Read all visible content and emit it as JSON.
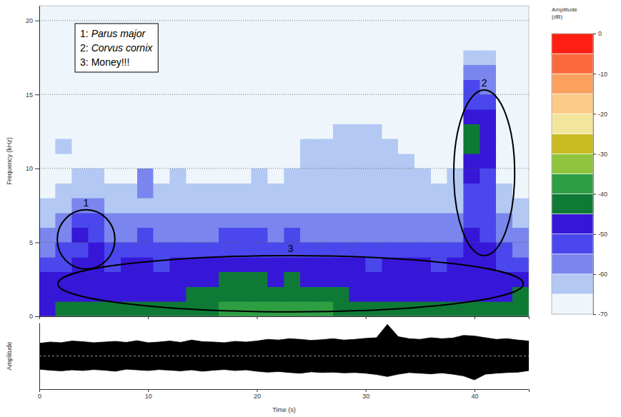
{
  "chart_data": [
    {
      "type": "heatmap",
      "ylabel": "Frequency (kHz)",
      "xlim": [
        0,
        45
      ],
      "xticks": [
        0,
        10,
        20,
        30,
        40
      ],
      "ylim": [
        0,
        21
      ],
      "yticks": [
        0,
        5,
        10,
        15,
        20
      ],
      "grid": true,
      "line_style": "dotted",
      "tick_labels": "y",
      "x_bins": [
        0,
        1.5,
        3,
        4.5,
        6,
        7.5,
        9,
        10.5,
        12,
        13.5,
        15,
        16.5,
        18,
        19.5,
        21,
        22.5,
        24,
        25.5,
        27,
        28.5,
        30,
        31.5,
        33,
        34.5,
        36,
        37.5,
        39,
        40.5,
        42,
        43.5,
        45
      ],
      "y_bins": [
        0,
        1,
        2,
        3,
        4,
        5,
        6,
        7,
        8,
        9,
        10,
        11,
        12,
        13,
        14,
        15,
        16,
        17,
        18,
        19,
        20,
        21
      ],
      "z": [
        [
          -46,
          -45,
          -44,
          -44,
          -45,
          -44,
          -44,
          -45,
          -43,
          -42,
          -41,
          -40,
          -39,
          -39,
          -40,
          -39,
          -39,
          -40,
          -42,
          -43,
          -44,
          -45,
          -44,
          -44,
          -44,
          -45,
          -42,
          -43,
          -44,
          -41
        ],
        [
          -49,
          -48,
          -47,
          -47,
          -48,
          -47,
          -47,
          -48,
          -46,
          -45,
          -44,
          -43,
          -42,
          -42,
          -43,
          -42,
          -43,
          -44,
          -45,
          -46,
          -47,
          -47,
          -47,
          -46,
          -47,
          -47,
          -46,
          -46,
          -47,
          -45
        ],
        [
          -50,
          -49,
          -48,
          -47,
          -48,
          -48,
          -47,
          -48,
          -47,
          -46,
          -46,
          -45,
          -45,
          -45,
          -46,
          -45,
          -46,
          -46,
          -47,
          -47,
          -48,
          -47,
          -47,
          -47,
          -48,
          -47,
          -46,
          -47,
          -48,
          -47
        ],
        [
          -53,
          -52,
          -50,
          -49,
          -51,
          -50,
          -50,
          -51,
          -50,
          -49,
          -49,
          -49,
          -48,
          -48,
          -49,
          -48,
          -49,
          -49,
          -50,
          -50,
          -51,
          -50,
          -50,
          -50,
          -51,
          -50,
          -48,
          -49,
          -51,
          -52
        ],
        [
          -56,
          -55,
          -51,
          -50,
          -54,
          -53,
          -52,
          -53,
          -52,
          -52,
          -52,
          -51,
          -51,
          -51,
          -52,
          -51,
          -52,
          -52,
          -53,
          -53,
          -53,
          -52,
          -52,
          -52,
          -53,
          -52,
          -49,
          -50,
          -54,
          -56
        ],
        [
          -59,
          -58,
          -50,
          -51,
          -57,
          -56,
          -55,
          -56,
          -56,
          -56,
          -56,
          -55,
          -55,
          -55,
          -56,
          -55,
          -56,
          -56,
          -56,
          -57,
          -56,
          -56,
          -56,
          -56,
          -57,
          -56,
          -50,
          -51,
          -57,
          -60
        ],
        [
          -62,
          -60,
          -52,
          -53,
          -60,
          -59,
          -58,
          -59,
          -59,
          -60,
          -59,
          -59,
          -58,
          -58,
          -59,
          -58,
          -59,
          -59,
          -59,
          -60,
          -59,
          -59,
          -59,
          -60,
          -60,
          -59,
          -51,
          -52,
          -60,
          -63
        ],
        [
          -64,
          -63,
          -56,
          -57,
          -63,
          -62,
          -61,
          -62,
          -62,
          -62,
          -62,
          -62,
          -61,
          -61,
          -62,
          -61,
          -62,
          -62,
          -62,
          -63,
          -62,
          -62,
          -62,
          -63,
          -63,
          -62,
          -52,
          -53,
          -63,
          -65
        ],
        [
          -66,
          -65,
          -62,
          -63,
          -65,
          -64,
          -60,
          -64,
          -64,
          -64,
          -64,
          -64,
          -64,
          -63,
          -64,
          -63,
          -64,
          -64,
          -64,
          -64,
          -64,
          -63,
          -64,
          -64,
          -65,
          -64,
          -51,
          -53,
          -65,
          -67
        ],
        [
          -67,
          -66,
          -65,
          -65,
          -66,
          -66,
          -56,
          -66,
          -65,
          -66,
          -66,
          -66,
          -66,
          -65,
          -66,
          -65,
          -65,
          -65,
          -65,
          -64,
          -65,
          -64,
          -65,
          -65,
          -66,
          -65,
          -50,
          -52,
          -66,
          -68
        ],
        [
          -67,
          -66,
          -67,
          -67,
          -67,
          -67,
          -67,
          -67,
          -66,
          -67,
          -67,
          -67,
          -67,
          -66,
          -67,
          -66,
          -65,
          -65,
          -64,
          -64,
          -64,
          -64,
          -65,
          -66,
          -67,
          -66,
          -46,
          -50,
          -67,
          -69
        ],
        [
          -68,
          -65,
          -68,
          -68,
          -68,
          -68,
          -68,
          -68,
          -68,
          -68,
          -68,
          -68,
          -68,
          -67,
          -67,
          -66,
          -65,
          -65,
          -64,
          -64,
          -64,
          -65,
          -66,
          -67,
          -68,
          -67,
          -45,
          -49,
          -68,
          -69
        ],
        [
          -69,
          -68,
          -69,
          -69,
          -69,
          -69,
          -69,
          -69,
          -69,
          -69,
          -69,
          -68,
          -68,
          -68,
          -68,
          -67,
          -66,
          -66,
          -65,
          -65,
          -65,
          -66,
          -67,
          -68,
          -69,
          -68,
          -44,
          -48,
          -69,
          -70
        ],
        [
          -70,
          -69,
          -70,
          -70,
          -70,
          -70,
          -70,
          -70,
          -70,
          -70,
          -70,
          -69,
          -69,
          -69,
          -69,
          -68,
          -68,
          -67,
          -67,
          -67,
          -67,
          -68,
          -68,
          -69,
          -70,
          -69,
          -47,
          -50,
          -70,
          -70
        ],
        [
          -70,
          -70,
          -70,
          -70,
          -70,
          -70,
          -70,
          -70,
          -70,
          -70,
          -70,
          -70,
          -70,
          -70,
          -70,
          -69,
          -69,
          -69,
          -68,
          -68,
          -69,
          -69,
          -69,
          -70,
          -70,
          -70,
          -52,
          -54,
          -70,
          -70
        ],
        [
          -70,
          -70,
          -70,
          -70,
          -70,
          -70,
          -70,
          -70,
          -70,
          -70,
          -70,
          -70,
          -70,
          -70,
          -70,
          -70,
          -70,
          -70,
          -70,
          -70,
          -70,
          -70,
          -70,
          -70,
          -70,
          -70,
          -55,
          -57,
          -70,
          -70
        ],
        [
          -70,
          -70,
          -70,
          -70,
          -70,
          -70,
          -70,
          -70,
          -70,
          -70,
          -70,
          -70,
          -70,
          -70,
          -70,
          -70,
          -70,
          -70,
          -70,
          -70,
          -70,
          -70,
          -70,
          -70,
          -70,
          -70,
          -58,
          -60,
          -70,
          -70
        ],
        [
          -70,
          -70,
          -70,
          -70,
          -70,
          -70,
          -70,
          -70,
          -70,
          -70,
          -70,
          -70,
          -70,
          -70,
          -70,
          -70,
          -70,
          -70,
          -70,
          -70,
          -70,
          -70,
          -70,
          -70,
          -70,
          -70,
          -63,
          -64,
          -70,
          -70
        ],
        [
          -70,
          -70,
          -70,
          -70,
          -70,
          -70,
          -70,
          -70,
          -70,
          -70,
          -70,
          -70,
          -70,
          -70,
          -70,
          -70,
          -70,
          -70,
          -70,
          -70,
          -70,
          -70,
          -70,
          -70,
          -70,
          -70,
          -70,
          -70,
          -70,
          -70
        ],
        [
          -70,
          -70,
          -70,
          -70,
          -70,
          -70,
          -70,
          -70,
          -70,
          -70,
          -70,
          -70,
          -70,
          -70,
          -70,
          -70,
          -70,
          -70,
          -70,
          -70,
          -70,
          -70,
          -70,
          -70,
          -70,
          -70,
          -70,
          -70,
          -70,
          -70
        ],
        [
          -70,
          -70,
          -70,
          -70,
          -70,
          -70,
          -70,
          -70,
          -70,
          -70,
          -70,
          -70,
          -70,
          -70,
          -70,
          -70,
          -70,
          -70,
          -70,
          -70,
          -70,
          -70,
          -70,
          -70,
          -70,
          -70,
          -70,
          -70,
          -70,
          -70
        ]
      ],
      "colorbar": {
        "title": "Amplitude (dB)",
        "range": [
          -70,
          0
        ],
        "ticks": [
          0,
          -10,
          -20,
          -30,
          -40,
          -50,
          -60,
          -70
        ],
        "colors": [
          "#eef6fc",
          "#b3c8f3",
          "#7a86ee",
          "#4a48ec",
          "#3617d8",
          "#0f7a35",
          "#2e9e43",
          "#8fc43c",
          "#c9bb23",
          "#f3e59b",
          "#fccb87",
          "#fba15e",
          "#fb6a3c",
          "#ff1f12"
        ]
      },
      "annotations": [
        {
          "label": "1",
          "x": 4.3,
          "y": 5.2,
          "rx": 2.65,
          "ry": 2.0
        },
        {
          "label": "2",
          "x": 40.9,
          "y": 9.7,
          "rx": 2.8,
          "ry": 5.6
        },
        {
          "label": "3",
          "x": 23.1,
          "y": 2.2,
          "rx": 21.4,
          "ry": 1.9
        }
      ],
      "notes": [
        {
          "key": "1:",
          "text": "Parus major",
          "font_style": "italic"
        },
        {
          "key": "2:",
          "text": "Corvus cornix",
          "font_style": "italic"
        },
        {
          "key": "3:",
          "text": "Money!!!",
          "font_style": "normal"
        }
      ]
    },
    {
      "type": "area",
      "xlabel": "Time (s)",
      "ylabel": "Amplitude",
      "xlim": [
        0,
        45
      ],
      "xticks": [
        0,
        10,
        20,
        30,
        40
      ],
      "ylim": [
        -1,
        1
      ],
      "yticks": [],
      "tick_labels": "x",
      "color": "#000000",
      "x": [
        0,
        1,
        2,
        3,
        4,
        5,
        6,
        7,
        8,
        9,
        10,
        11,
        12,
        13,
        14,
        15,
        16,
        17,
        18,
        19,
        20,
        21,
        22,
        23,
        24,
        25,
        26,
        27,
        28,
        29,
        30,
        31,
        32,
        33,
        34,
        35,
        36,
        37,
        38,
        39,
        40,
        41,
        42,
        43,
        44,
        45
      ],
      "upper": [
        0.38,
        0.42,
        0.4,
        0.45,
        0.43,
        0.4,
        0.42,
        0.44,
        0.41,
        0.46,
        0.4,
        0.42,
        0.45,
        0.41,
        0.48,
        0.43,
        0.42,
        0.4,
        0.44,
        0.42,
        0.45,
        0.5,
        0.48,
        0.52,
        0.5,
        0.47,
        0.49,
        0.52,
        0.48,
        0.5,
        0.53,
        0.55,
        0.95,
        0.58,
        0.52,
        0.5,
        0.55,
        0.52,
        0.54,
        0.62,
        0.6,
        0.55,
        0.5,
        0.52,
        0.48,
        0.45
      ],
      "lower": [
        -0.4,
        -0.43,
        -0.45,
        -0.42,
        -0.44,
        -0.41,
        -0.43,
        -0.46,
        -0.4,
        -0.42,
        -0.44,
        -0.41,
        -0.43,
        -0.45,
        -0.42,
        -0.46,
        -0.43,
        -0.41,
        -0.44,
        -0.42,
        -0.46,
        -0.49,
        -0.47,
        -0.5,
        -0.52,
        -0.48,
        -0.5,
        -0.49,
        -0.51,
        -0.5,
        -0.52,
        -0.56,
        -0.62,
        -0.55,
        -0.5,
        -0.52,
        -0.54,
        -0.51,
        -0.55,
        -0.6,
        -0.72,
        -0.55,
        -0.52,
        -0.5,
        -0.49,
        -0.44
      ]
    }
  ]
}
